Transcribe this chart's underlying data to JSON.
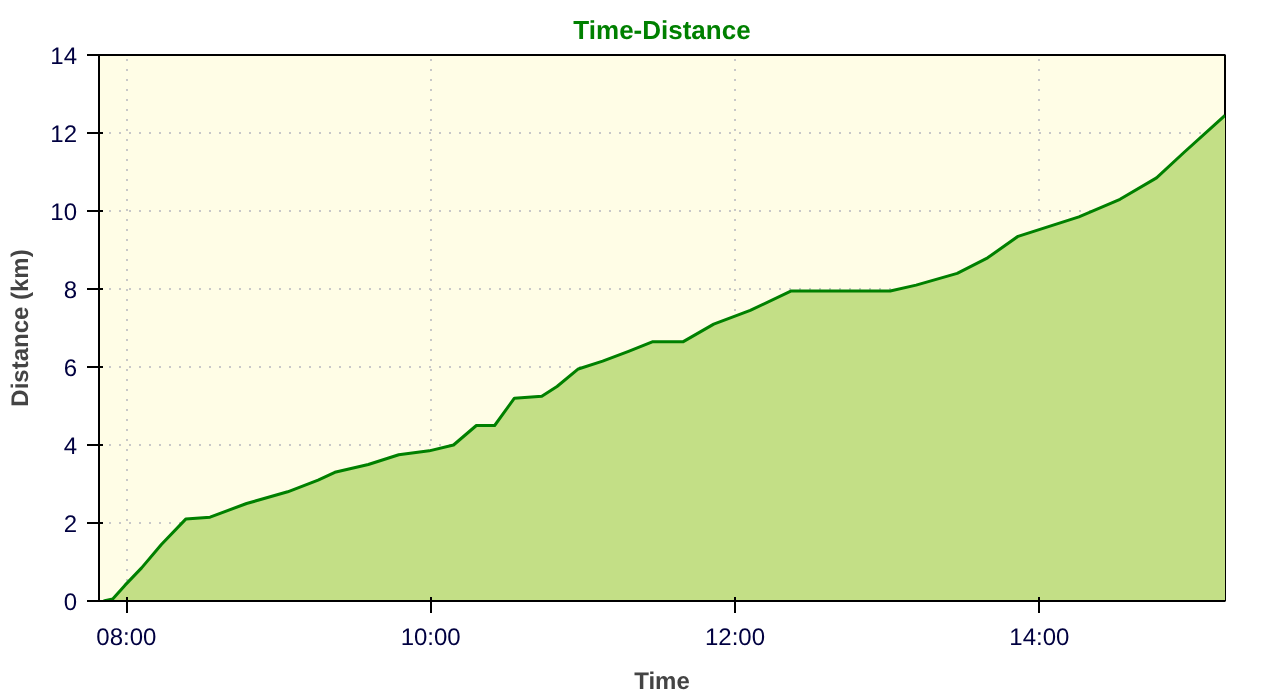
{
  "chart_data": {
    "type": "area",
    "title": "Time-Distance",
    "xlabel": "Time",
    "ylabel": "Distance (km)",
    "x": [
      7.85,
      7.91,
      7.99,
      8.1,
      8.23,
      8.39,
      8.55,
      8.79,
      9.06,
      9.26,
      9.37,
      9.59,
      9.79,
      9.99,
      10.15,
      10.3,
      10.42,
      10.55,
      10.73,
      10.83,
      10.97,
      11.13,
      11.3,
      11.46,
      11.66,
      11.86,
      12.1,
      12.37,
      13.02,
      13.19,
      13.46,
      13.66,
      13.86,
      14.06,
      14.26,
      14.53,
      14.77,
      14.95,
      15.22
    ],
    "series": [
      {
        "color": "#008000",
        "values": [
          0,
          0.05,
          0.4,
          0.85,
          1.45,
          2.1,
          2.15,
          2.5,
          2.8,
          3.1,
          3.3,
          3.5,
          3.75,
          3.85,
          4.0,
          4.5,
          4.5,
          5.2,
          5.25,
          5.5,
          5.95,
          6.15,
          6.4,
          6.65,
          6.65,
          7.1,
          7.45,
          7.95,
          7.95,
          8.1,
          8.4,
          8.8,
          9.35,
          9.6,
          9.85,
          10.3,
          10.85,
          11.5,
          12.45
        ]
      }
    ],
    "xlim": [
      7.82,
      15.22
    ],
    "ylim": [
      0,
      14
    ],
    "xticks": [
      {
        "value": 8,
        "label": "08:00"
      },
      {
        "value": 10,
        "label": "10:00"
      },
      {
        "value": 12,
        "label": "12:00"
      },
      {
        "value": 14,
        "label": "14:00"
      }
    ],
    "yticks": [
      0,
      2,
      4,
      6,
      8,
      10,
      12,
      14
    ],
    "grid": true,
    "line_style": "solid"
  }
}
